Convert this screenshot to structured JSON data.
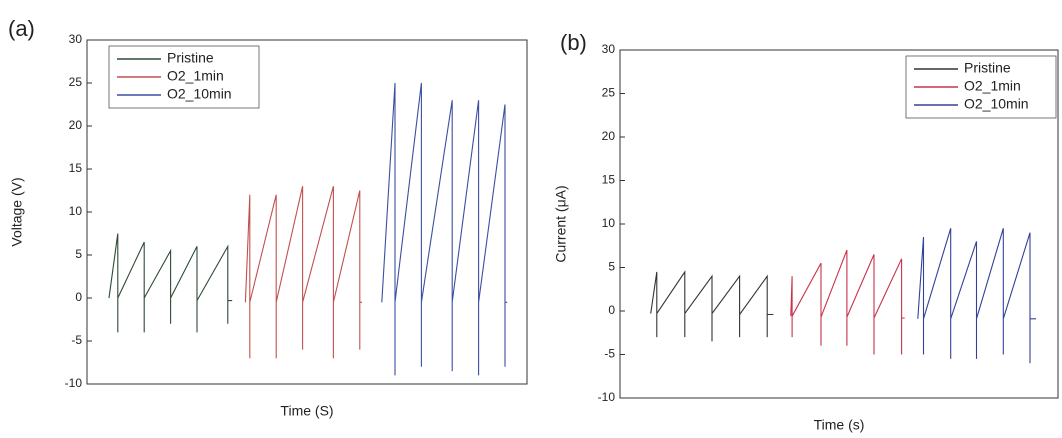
{
  "chart_data": [
    {
      "type": "line",
      "panel_label": "(a)",
      "x_label": "Time (S)",
      "y_label": "Voltage (V)",
      "xlim": [
        0,
        100
      ],
      "ylim": [
        -10,
        30
      ],
      "yticks": [
        -10,
        -5,
        0,
        5,
        10,
        15,
        20,
        25,
        30
      ],
      "legend": "top-left",
      "series": [
        {
          "name": "Pristine",
          "color": "#2f4a36",
          "x": [
            5,
            7,
            7,
            7,
            13,
            13,
            13,
            19,
            19,
            19,
            25,
            25,
            25,
            32,
            32,
            32,
            33
          ],
          "values": [
            0,
            7.5,
            -4,
            0,
            6.5,
            -4,
            0,
            5.5,
            -3,
            0,
            6,
            -4,
            -0.3,
            6,
            -3,
            -0.3,
            -0.3
          ]
        },
        {
          "name": "O2_1min",
          "color": "#c0504d",
          "x": [
            36,
            37,
            37,
            37,
            43,
            43,
            43,
            49,
            49,
            49,
            56,
            56,
            56,
            62,
            62,
            62,
            62.5
          ],
          "values": [
            -0.5,
            12,
            -7,
            -0.5,
            12,
            -7,
            -0.5,
            13,
            -6,
            -0.5,
            13,
            -7,
            -0.5,
            12.5,
            -6,
            -0.5,
            -0.5
          ]
        },
        {
          "name": "O2_10min",
          "color": "#3a4fa0",
          "x": [
            67,
            70,
            70,
            70,
            76,
            76,
            76,
            83,
            83,
            83,
            89,
            89,
            89,
            95,
            95,
            95,
            95.5
          ],
          "values": [
            -0.5,
            25,
            -9,
            -0.5,
            25,
            -8,
            -0.5,
            23,
            -8.5,
            -0.5,
            23,
            -9,
            -0.5,
            22.5,
            -8,
            -0.5,
            -0.5
          ]
        }
      ]
    },
    {
      "type": "line",
      "panel_label": "(b)",
      "x_label": "Time (s)",
      "y_label": "Current (μA)",
      "xlim": [
        0,
        100
      ],
      "ylim": [
        -10,
        30
      ],
      "yticks": [
        -10,
        -5,
        0,
        5,
        10,
        15,
        20,
        25,
        30
      ],
      "legend": "top-right",
      "series": [
        {
          "name": "Pristine",
          "color": "#333333",
          "x": [
            7,
            8.4,
            8.4,
            8.4,
            14.8,
            14.8,
            14.8,
            21,
            21,
            21,
            27.3,
            27.3,
            27.3,
            33.6,
            33.6,
            33.6,
            35
          ],
          "values": [
            -0.3,
            4.5,
            -3,
            -0.3,
            4.5,
            -3,
            -0.3,
            4,
            -3.5,
            -0.3,
            4,
            -3,
            -0.4,
            4,
            -3,
            -0.4,
            -0.4
          ]
        },
        {
          "name": "O2_1min",
          "color": "#c8324a",
          "x": [
            39,
            39.3,
            39.3,
            39.3,
            45.9,
            45.9,
            45.9,
            51.8,
            51.8,
            51.8,
            58,
            58,
            58,
            64.3,
            64.3,
            64.3,
            65
          ],
          "values": [
            -0.6,
            4,
            -3,
            -0.6,
            5.5,
            -4,
            -0.7,
            7,
            -4,
            -0.7,
            6.5,
            -5,
            -0.8,
            6,
            -5,
            -0.8,
            -0.8
          ]
        },
        {
          "name": "O2_10min",
          "color": "#34409a",
          "x": [
            68,
            69.3,
            69.3,
            69.3,
            75.5,
            75.5,
            75.5,
            81.4,
            81.4,
            81.4,
            87.5,
            87.5,
            87.5,
            93.6,
            93.6,
            93.6,
            95
          ],
          "values": [
            -0.9,
            8.5,
            -5,
            -0.9,
            9.5,
            -5.5,
            -0.9,
            8,
            -5.5,
            -0.9,
            9.5,
            -5,
            -0.9,
            9,
            -6,
            -0.9,
            -0.9
          ]
        }
      ]
    }
  ]
}
